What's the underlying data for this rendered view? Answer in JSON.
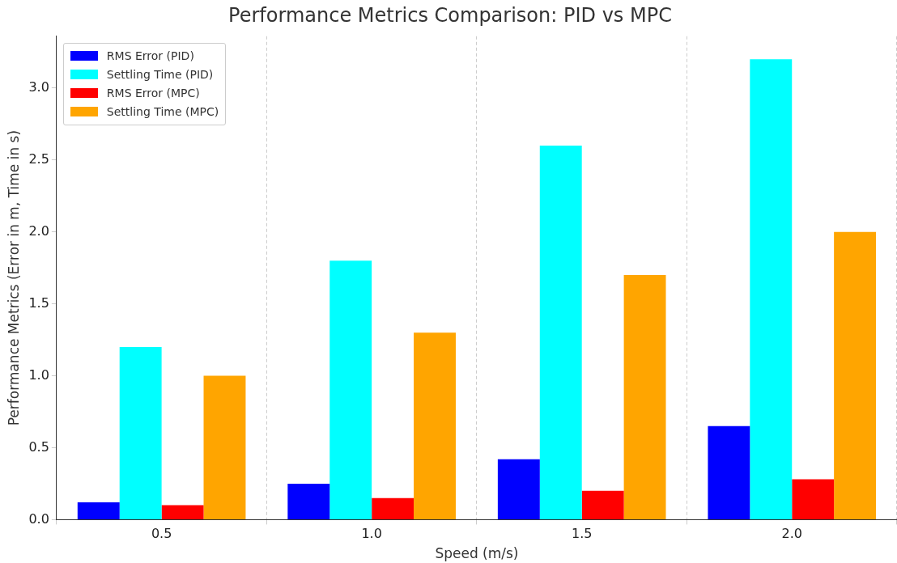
{
  "chart_data": {
    "type": "bar",
    "title": "Performance Metrics Comparison: PID vs MPC",
    "xlabel": "Speed (m/s)",
    "ylabel": "Performance Metrics (Error in m, Time in s)",
    "categories": [
      "0.5",
      "1.0",
      "1.5",
      "2.0"
    ],
    "series": [
      {
        "name": "RMS Error (PID)",
        "color": "#0000ff",
        "values": [
          0.12,
          0.25,
          0.42,
          0.65
        ]
      },
      {
        "name": "Settling Time (PID)",
        "color": "#00ffff",
        "values": [
          1.2,
          1.8,
          2.6,
          3.2
        ]
      },
      {
        "name": "RMS Error (MPC)",
        "color": "#ff0000",
        "values": [
          0.1,
          0.15,
          0.2,
          0.28
        ]
      },
      {
        "name": "Settling Time (MPC)",
        "color": "#ffa500",
        "values": [
          1.0,
          1.3,
          1.7,
          2.0
        ]
      }
    ],
    "ylim": [
      0,
      3.36
    ],
    "yticks": [
      {
        "value": 0,
        "label": "0.0"
      },
      {
        "value": 0.5,
        "label": "0.5"
      },
      {
        "value": 1,
        "label": "1.0"
      },
      {
        "value": 1.5,
        "label": "1.5"
      },
      {
        "value": 2,
        "label": "2.0"
      },
      {
        "value": 2.5,
        "label": "2.5"
      },
      {
        "value": 3,
        "label": "3.0"
      }
    ],
    "grid": "x",
    "legend": "top left"
  }
}
